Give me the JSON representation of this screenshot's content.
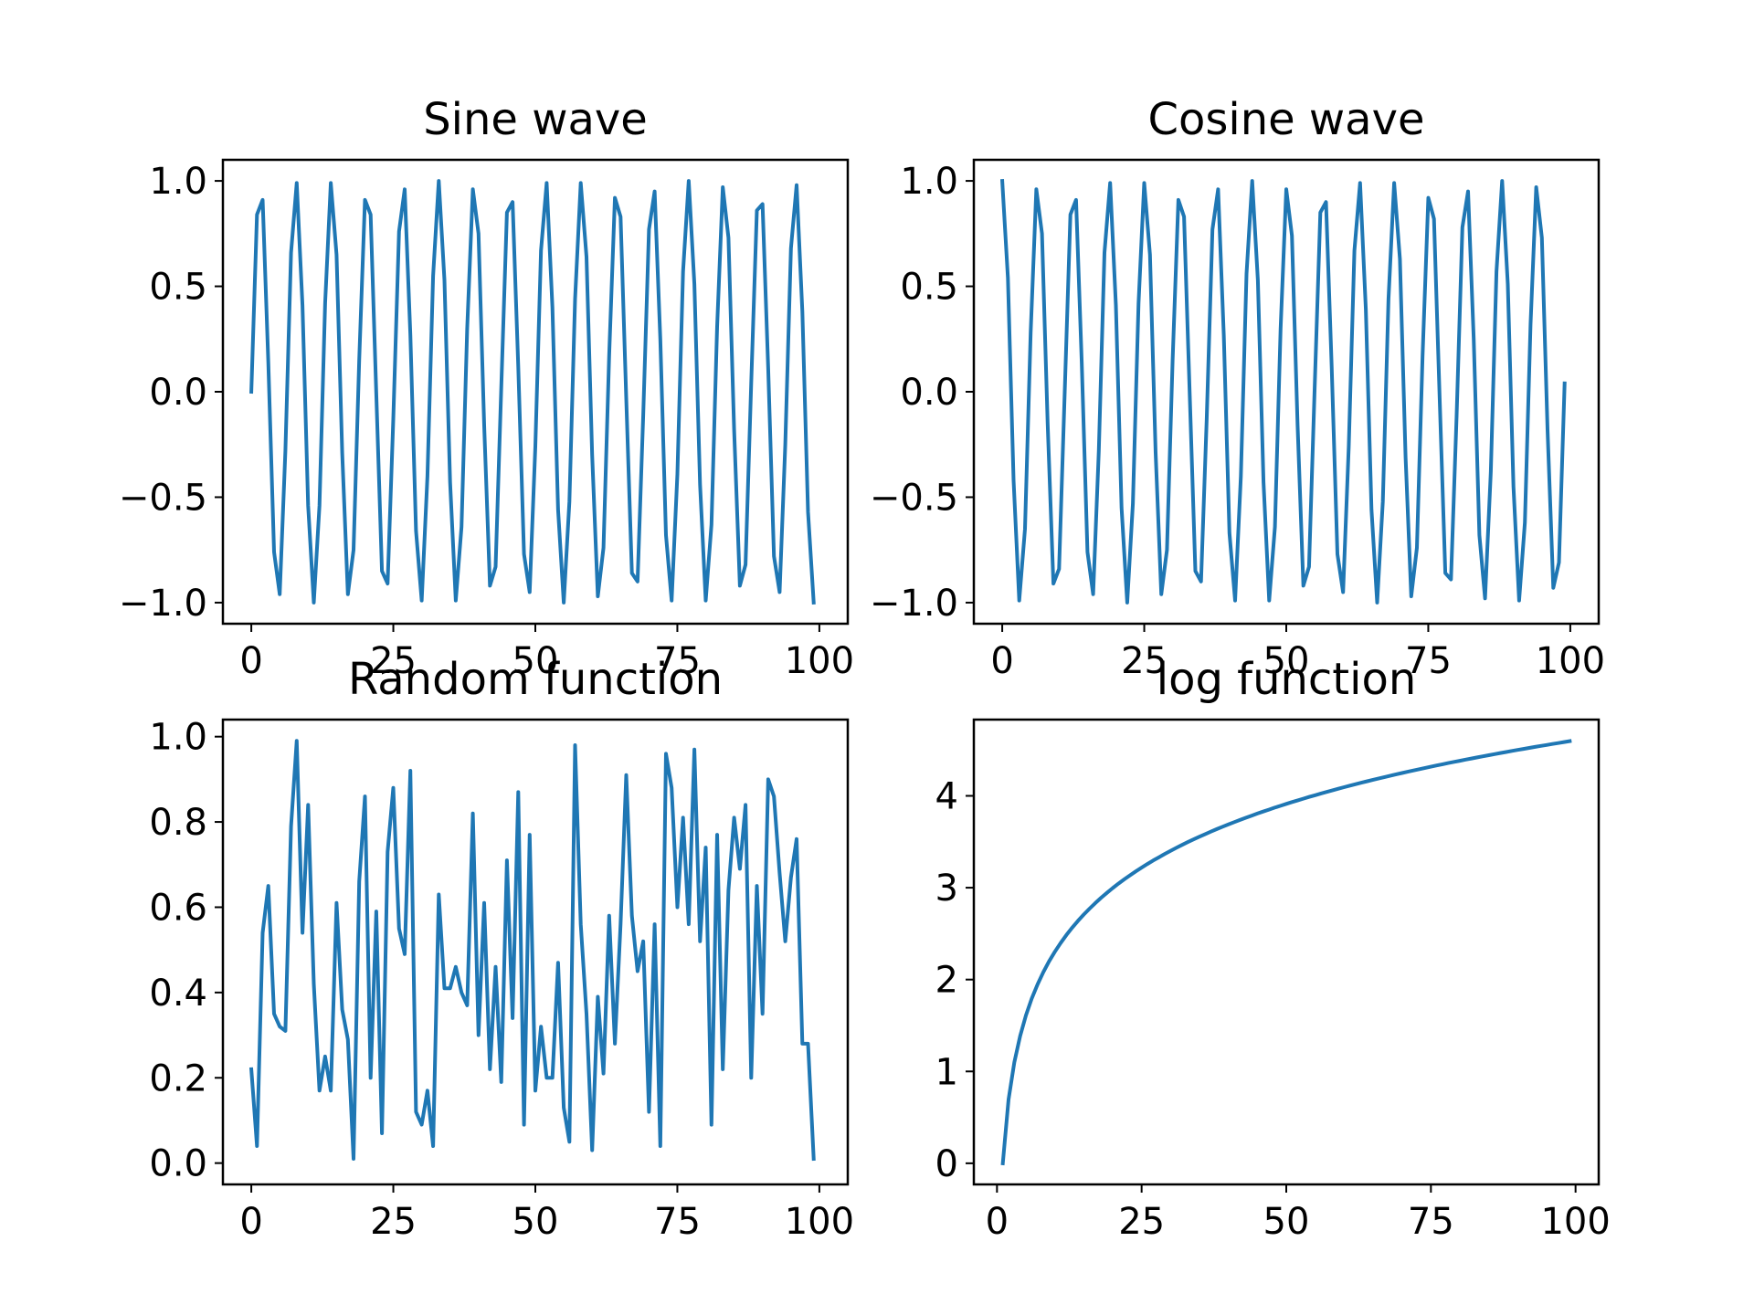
{
  "line_color": "#1f77b4",
  "chart_data": [
    {
      "type": "line",
      "title": "Sine wave",
      "xlabel": "",
      "ylabel": "",
      "xlim": [
        -5,
        105
      ],
      "ylim": [
        -1.1,
        1.1
      ],
      "xticks": [
        0,
        25,
        50,
        75,
        100
      ],
      "xtick_labels": [
        "0",
        "25",
        "50",
        "75",
        "100"
      ],
      "yticks": [
        -1.0,
        -0.5,
        0.0,
        0.5,
        1.0
      ],
      "ytick_labels": [
        "−1.0",
        "−0.5",
        "0.0",
        "0.5",
        "1.0"
      ],
      "grid": false,
      "series": [
        {
          "x_start": 0,
          "x_step": 1,
          "y": [
            0,
            0.84,
            0.91,
            0.14,
            -0.76,
            -0.96,
            -0.28,
            0.66,
            0.99,
            0.41,
            -0.54,
            -1.0,
            -0.54,
            0.42,
            0.99,
            0.65,
            -0.29,
            -0.96,
            -0.75,
            0.15,
            0.91,
            0.84,
            -0.01,
            -0.85,
            -0.91,
            -0.13,
            0.76,
            0.96,
            0.27,
            -0.66,
            -0.99,
            -0.4,
            0.55,
            1.0,
            0.53,
            -0.43,
            -0.99,
            -0.64,
            0.3,
            0.96,
            0.75,
            -0.16,
            -0.92,
            -0.83,
            0.02,
            0.85,
            0.9,
            0.12,
            -0.77,
            -0.95,
            -0.26,
            0.67,
            0.99,
            0.4,
            -0.56,
            -1.0,
            -0.52,
            0.44,
            0.99,
            0.64,
            -0.3,
            -0.97,
            -0.74,
            0.17,
            0.92,
            0.83,
            -0.03,
            -0.86,
            -0.9,
            -0.11,
            0.77,
            0.95,
            0.25,
            -0.68,
            -0.99,
            -0.39,
            0.57,
            1.0,
            0.51,
            -0.44,
            -0.99,
            -0.63,
            0.31,
            0.97,
            0.73,
            -0.18,
            -0.92,
            -0.82,
            0.04,
            0.86,
            0.89,
            0.11,
            -0.78,
            -0.95,
            -0.25,
            0.68,
            0.98,
            0.38,
            -0.57,
            -1.0
          ]
        }
      ]
    },
    {
      "type": "line",
      "title": "Cosine wave",
      "xlabel": "",
      "ylabel": "",
      "xlim": [
        -5,
        105
      ],
      "ylim": [
        -1.1,
        1.1
      ],
      "xticks": [
        0,
        25,
        50,
        75,
        100
      ],
      "xtick_labels": [
        "0",
        "25",
        "50",
        "75",
        "100"
      ],
      "yticks": [
        -1.0,
        -0.5,
        0.0,
        0.5,
        1.0
      ],
      "ytick_labels": [
        "−1.0",
        "−0.5",
        "0.0",
        "0.5",
        "1.0"
      ],
      "grid": false,
      "series": [
        {
          "x_start": 0,
          "x_step": 1,
          "y": [
            1.0,
            0.54,
            -0.42,
            -0.99,
            -0.65,
            0.28,
            0.96,
            0.75,
            -0.15,
            -0.91,
            -0.84,
            0.0,
            0.84,
            0.91,
            0.14,
            -0.76,
            -0.96,
            -0.28,
            0.66,
            0.99,
            0.41,
            -0.55,
            -1.0,
            -0.53,
            0.42,
            0.99,
            0.65,
            -0.29,
            -0.96,
            -0.75,
            0.15,
            0.91,
            0.83,
            -0.01,
            -0.85,
            -0.9,
            -0.13,
            0.77,
            0.96,
            0.27,
            -0.67,
            -0.99,
            -0.4,
            0.56,
            1.0,
            0.53,
            -0.43,
            -0.99,
            -0.64,
            0.3,
            0.96,
            0.74,
            -0.16,
            -0.92,
            -0.83,
            0.02,
            0.85,
            0.9,
            0.12,
            -0.77,
            -0.95,
            -0.26,
            0.67,
            0.99,
            0.39,
            -0.56,
            -1.0,
            -0.52,
            0.44,
            0.99,
            0.63,
            -0.31,
            -0.97,
            -0.74,
            0.17,
            0.92,
            0.82,
            -0.03,
            -0.86,
            -0.89,
            -0.11,
            0.78,
            0.95,
            0.25,
            -0.68,
            -0.98,
            -0.38,
            0.57,
            1.0,
            0.51,
            -0.45,
            -0.99,
            -0.62,
            0.32,
            0.97,
            0.73,
            -0.18,
            -0.93,
            -0.81,
            0.04
          ]
        }
      ]
    },
    {
      "type": "line",
      "title": "Random function",
      "xlabel": "",
      "ylabel": "",
      "xlim": [
        -5,
        105
      ],
      "ylim": [
        -0.05,
        1.04
      ],
      "xticks": [
        0,
        25,
        50,
        75,
        100
      ],
      "xtick_labels": [
        "0",
        "25",
        "50",
        "75",
        "100"
      ],
      "yticks": [
        0.0,
        0.2,
        0.4,
        0.6,
        0.8,
        1.0
      ],
      "ytick_labels": [
        "0.0",
        "0.2",
        "0.4",
        "0.6",
        "0.8",
        "1.0"
      ],
      "grid": false,
      "series": [
        {
          "x_start": 0,
          "x_step": 1,
          "y": [
            0.22,
            0.04,
            0.54,
            0.65,
            0.35,
            0.32,
            0.31,
            0.79,
            0.99,
            0.54,
            0.84,
            0.42,
            0.17,
            0.25,
            0.17,
            0.61,
            0.36,
            0.29,
            0.01,
            0.66,
            0.86,
            0.2,
            0.59,
            0.07,
            0.73,
            0.88,
            0.55,
            0.49,
            0.92,
            0.12,
            0.09,
            0.17,
            0.04,
            0.63,
            0.41,
            0.41,
            0.46,
            0.4,
            0.37,
            0.82,
            0.3,
            0.61,
            0.22,
            0.46,
            0.19,
            0.71,
            0.34,
            0.87,
            0.09,
            0.77,
            0.17,
            0.32,
            0.2,
            0.2,
            0.47,
            0.13,
            0.05,
            0.98,
            0.56,
            0.35,
            0.03,
            0.39,
            0.21,
            0.58,
            0.28,
            0.56,
            0.91,
            0.58,
            0.45,
            0.52,
            0.12,
            0.56,
            0.04,
            0.96,
            0.88,
            0.6,
            0.81,
            0.56,
            0.97,
            0.52,
            0.74,
            0.09,
            0.77,
            0.22,
            0.64,
            0.81,
            0.69,
            0.84,
            0.2,
            0.65,
            0.35,
            0.9,
            0.86,
            0.68,
            0.52,
            0.67,
            0.76,
            0.28,
            0.28,
            0.01
          ]
        }
      ]
    },
    {
      "type": "line",
      "title": "log function",
      "xlabel": "",
      "ylabel": "",
      "xlim": [
        -4,
        104
      ],
      "ylim": [
        -0.23,
        4.83
      ],
      "xticks": [
        0,
        25,
        50,
        75,
        100
      ],
      "xtick_labels": [
        "0",
        "25",
        "50",
        "75",
        "100"
      ],
      "yticks": [
        0,
        1,
        2,
        3,
        4
      ],
      "ytick_labels": [
        "0",
        "1",
        "2",
        "3",
        "4"
      ],
      "grid": false,
      "series": [
        {
          "function": "ln(x)",
          "x_start": 1,
          "x_end": 99,
          "x_step": 1,
          "y_sample": [
            [
              1,
              0.0
            ],
            [
              2,
              0.69
            ],
            [
              5,
              1.61
            ],
            [
              10,
              2.3
            ],
            [
              25,
              3.22
            ],
            [
              50,
              3.91
            ],
            [
              75,
              4.32
            ],
            [
              99,
              4.6
            ]
          ]
        }
      ]
    }
  ]
}
